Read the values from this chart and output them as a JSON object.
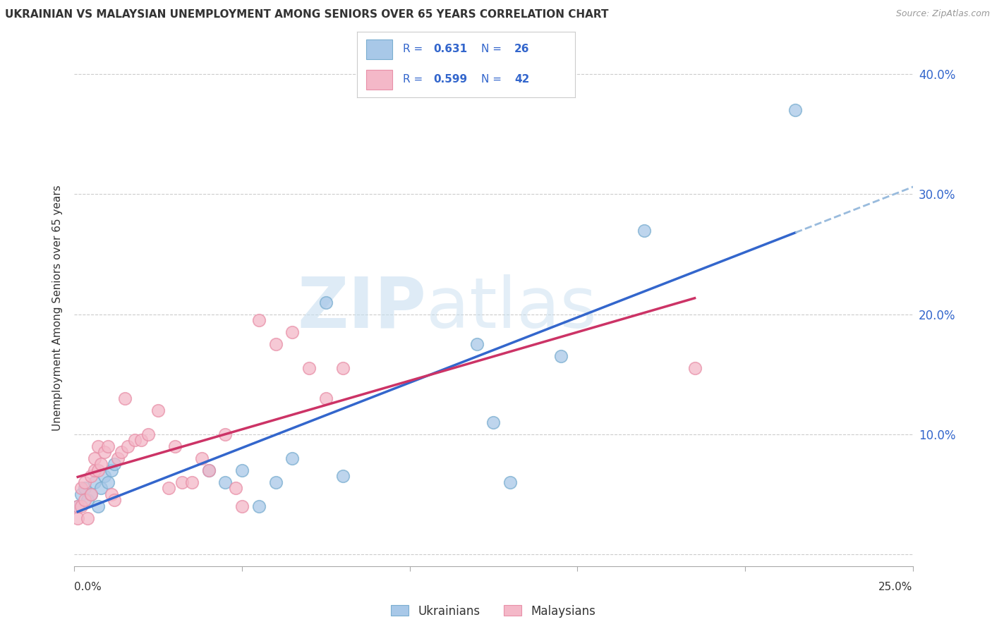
{
  "title": "UKRAINIAN VS MALAYSIAN UNEMPLOYMENT AMONG SENIORS OVER 65 YEARS CORRELATION CHART",
  "source": "Source: ZipAtlas.com",
  "ylabel": "Unemployment Among Seniors over 65 years",
  "xlim": [
    0.0,
    0.25
  ],
  "ylim": [
    -0.01,
    0.42
  ],
  "yticks": [
    0.0,
    0.1,
    0.2,
    0.3,
    0.4
  ],
  "ytick_labels": [
    "",
    "10.0%",
    "20.0%",
    "30.0%",
    "40.0%"
  ],
  "xticks": [
    0.0,
    0.05,
    0.1,
    0.15,
    0.2,
    0.25
  ],
  "legend_r_ukraine": "0.631",
  "legend_n_ukraine": "26",
  "legend_r_malaysia": "0.599",
  "legend_n_malaysia": "42",
  "ukraine_scatter_color": "#a8c8e8",
  "ukraine_scatter_edge": "#7aaed0",
  "malaysia_scatter_color": "#f4b8c8",
  "malaysia_scatter_edge": "#e890a8",
  "ukraine_line_color": "#3366cc",
  "malaysia_line_color": "#cc3366",
  "trend_extend_color": "#99bbdd",
  "text_blue": "#3366cc",
  "text_dark": "#333333",
  "text_gray": "#999999",
  "grid_color": "#cccccc",
  "background": "#ffffff",
  "ukrainians_x": [
    0.001,
    0.002,
    0.003,
    0.004,
    0.005,
    0.006,
    0.007,
    0.008,
    0.009,
    0.01,
    0.011,
    0.012,
    0.04,
    0.045,
    0.05,
    0.055,
    0.06,
    0.065,
    0.075,
    0.08,
    0.12,
    0.125,
    0.13,
    0.145,
    0.17,
    0.215
  ],
  "ukrainians_y": [
    0.04,
    0.05,
    0.055,
    0.045,
    0.05,
    0.06,
    0.04,
    0.055,
    0.065,
    0.06,
    0.07,
    0.075,
    0.07,
    0.06,
    0.07,
    0.04,
    0.06,
    0.08,
    0.21,
    0.065,
    0.175,
    0.11,
    0.06,
    0.165,
    0.27,
    0.37
  ],
  "malaysians_x": [
    0.001,
    0.001,
    0.002,
    0.002,
    0.003,
    0.003,
    0.004,
    0.005,
    0.005,
    0.006,
    0.006,
    0.007,
    0.007,
    0.008,
    0.009,
    0.01,
    0.011,
    0.012,
    0.013,
    0.014,
    0.015,
    0.016,
    0.018,
    0.02,
    0.022,
    0.025,
    0.028,
    0.03,
    0.032,
    0.035,
    0.038,
    0.04,
    0.045,
    0.048,
    0.05,
    0.055,
    0.06,
    0.065,
    0.07,
    0.075,
    0.08,
    0.185
  ],
  "malaysians_y": [
    0.03,
    0.04,
    0.04,
    0.055,
    0.045,
    0.06,
    0.03,
    0.05,
    0.065,
    0.07,
    0.08,
    0.07,
    0.09,
    0.075,
    0.085,
    0.09,
    0.05,
    0.045,
    0.08,
    0.085,
    0.13,
    0.09,
    0.095,
    0.095,
    0.1,
    0.12,
    0.055,
    0.09,
    0.06,
    0.06,
    0.08,
    0.07,
    0.1,
    0.055,
    0.04,
    0.195,
    0.175,
    0.185,
    0.155,
    0.13,
    0.155,
    0.155
  ]
}
